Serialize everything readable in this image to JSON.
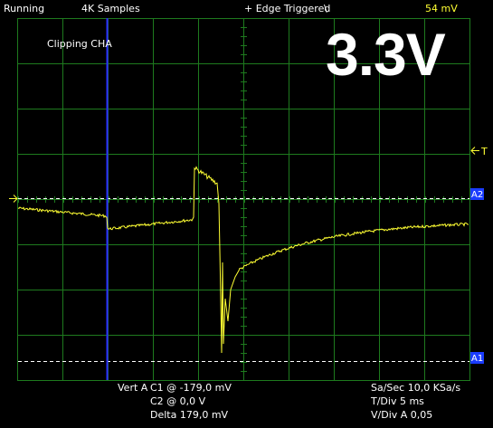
{
  "status": "Running",
  "samples": "4K Samples",
  "trigger_mode": "+ Edge Triggered",
  "trigger_slope_icon": "\\",
  "trigger_level": "54 mV",
  "overlay_title": "3.3V",
  "clipping_label": "Clipping CHA",
  "markers": {
    "trigger": "T",
    "a2": "A2",
    "a1": "A1"
  },
  "cursors": {
    "vert_label": "Vert A",
    "c1": "C1 @ -179,0 mV",
    "c2": "C2 @ 0,0  V",
    "delta": "Delta 179,0 mV"
  },
  "settings": {
    "sa_sec": "Sa/Sec  10,0 KSa/s",
    "t_div": "T/Div     5 ms",
    "v_div": "V/Div  A 0,05"
  },
  "colors": {
    "grid": "#1e7a1e",
    "trace": "#ffff33",
    "cursor": "#2a2aff",
    "marker_bg": "#1a3cff"
  }
}
